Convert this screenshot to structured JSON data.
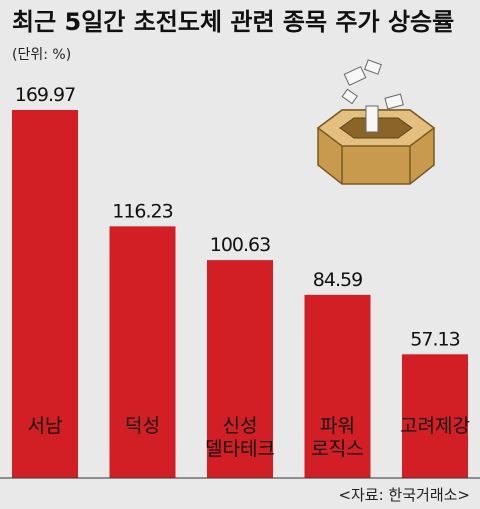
{
  "chart_data": {
    "type": "bar",
    "title": "최근 5일간 초전도체 관련 종목 주가 상승률",
    "unit": "(단위: %)",
    "categories": [
      [
        "서남"
      ],
      [
        "덕성"
      ],
      [
        "신성",
        "델타테크"
      ],
      [
        "파워",
        "로직스"
      ],
      [
        "고려제강"
      ]
    ],
    "values": [
      169.97,
      116.23,
      100.63,
      84.59,
      57.13
    ],
    "value_labels": [
      "169.97",
      "116.23",
      "100.63",
      "84.59",
      "57.13"
    ],
    "ylim": [
      0,
      175
    ],
    "source": "<자료: 한국거래소>",
    "colors": {
      "bar": "#d21f26",
      "background": "#e9e9e9",
      "baseline": "#333333"
    },
    "icon": "ballot-box-icon"
  }
}
